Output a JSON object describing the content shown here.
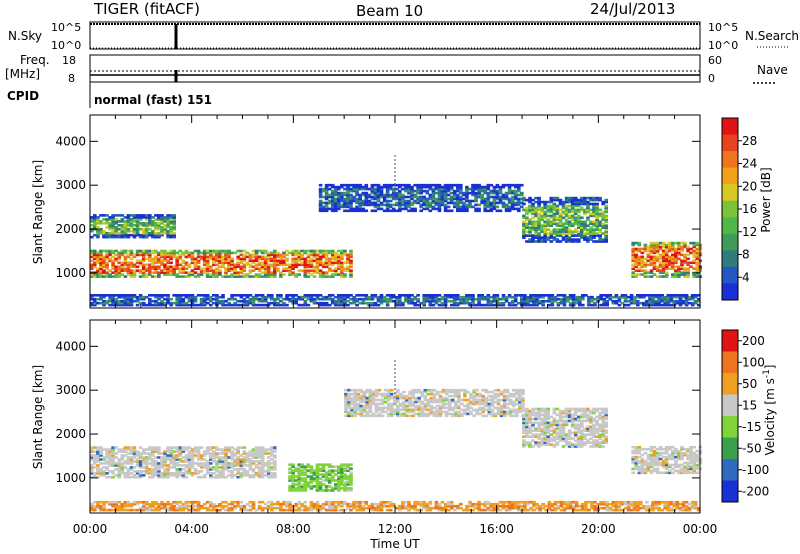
{
  "header": {
    "station": "TIGER (fitACF)",
    "beam": "Beam 10",
    "date": "24/Jul/2013"
  },
  "panels": {
    "nsky": {
      "left_label": "N.Sky",
      "right_label": "N.Search",
      "tick_top": "10^5",
      "tick_bottom": "10^0"
    },
    "freq": {
      "left_label_1": "Freq.",
      "left_label_2": "[MHz]",
      "right_label": "Nave",
      "left_ticks": [
        "18",
        "8"
      ],
      "right_ticks": [
        "60",
        "0"
      ]
    },
    "cpid": {
      "label": "CPID",
      "text": "normal (fast) 151"
    }
  },
  "chart_data": [
    {
      "type": "heatmap",
      "title": "",
      "xlabel": "",
      "ylabel": "Slant Range [km]",
      "ylim": [
        200,
        4600
      ],
      "yticks": [
        "1000",
        "2000",
        "3000",
        "4000"
      ],
      "colorbar": {
        "label": "Power [dB]",
        "ticks": [
          "4",
          "8",
          "12",
          "16",
          "20",
          "24",
          "28"
        ],
        "colors": [
          "#1a2fd6",
          "#2257c4",
          "#2f7c7e",
          "#3f9b5a",
          "#4fb848",
          "#7ac43c",
          "#d8c824",
          "#f1a21a",
          "#ef7420",
          "#e8421e",
          "#e01414"
        ]
      },
      "echo_bands": [
        {
          "t_start": 0.0,
          "t_end": 10.3,
          "r_low": 900,
          "r_high": 1500,
          "level": "high"
        },
        {
          "t_start": 0.0,
          "t_end": 3.3,
          "r_low": 1800,
          "r_high": 2300,
          "level": "mid"
        },
        {
          "t_start": 9.0,
          "t_end": 17.0,
          "r_low": 2400,
          "r_high": 3000,
          "level": "low"
        },
        {
          "t_start": 17.0,
          "t_end": 20.3,
          "r_low": 1700,
          "r_high": 2700,
          "level": "mid"
        },
        {
          "t_start": 21.3,
          "t_end": 24.0,
          "r_low": 900,
          "r_high": 1700,
          "level": "high"
        },
        {
          "t_start": 0.0,
          "t_end": 24.0,
          "r_low": 250,
          "r_high": 500,
          "level": "low"
        }
      ]
    },
    {
      "type": "heatmap",
      "title": "",
      "xlabel": "Time UT",
      "ylabel": "Slant Range [km]",
      "ylim": [
        200,
        4600
      ],
      "yticks": [
        "1000",
        "2000",
        "3000",
        "4000"
      ],
      "xticks": [
        "00:00",
        "04:00",
        "08:00",
        "12:00",
        "16:00",
        "20:00",
        "00:00"
      ],
      "colorbar": {
        "label": "Velocity [m s^-1]",
        "ticks": [
          "200",
          "100",
          "50",
          "15",
          "-15",
          "-50",
          "-100",
          "-200"
        ],
        "colors": [
          "#1a2fd6",
          "#2f6bc0",
          "#3aa04a",
          "#7fd43a",
          "#c8c8c8",
          "#f0a020",
          "#ef7420",
          "#e01414"
        ]
      },
      "echo_bands": [
        {
          "t_start": 0.0,
          "t_end": 7.3,
          "r_low": 1000,
          "r_high": 1700,
          "class": "gray"
        },
        {
          "t_start": 7.8,
          "t_end": 10.3,
          "r_low": 700,
          "r_high": 1300,
          "class": "green"
        },
        {
          "t_start": 10.0,
          "t_end": 17.0,
          "r_low": 2400,
          "r_high": 3000,
          "class": "gray"
        },
        {
          "t_start": 17.0,
          "t_end": 20.3,
          "r_low": 1700,
          "r_high": 2600,
          "class": "gray"
        },
        {
          "t_start": 21.3,
          "t_end": 24.0,
          "r_low": 1100,
          "r_high": 1700,
          "class": "gray"
        },
        {
          "t_start": 0.0,
          "t_end": 24.0,
          "r_low": 250,
          "r_high": 450,
          "class": "orange"
        }
      ]
    }
  ]
}
